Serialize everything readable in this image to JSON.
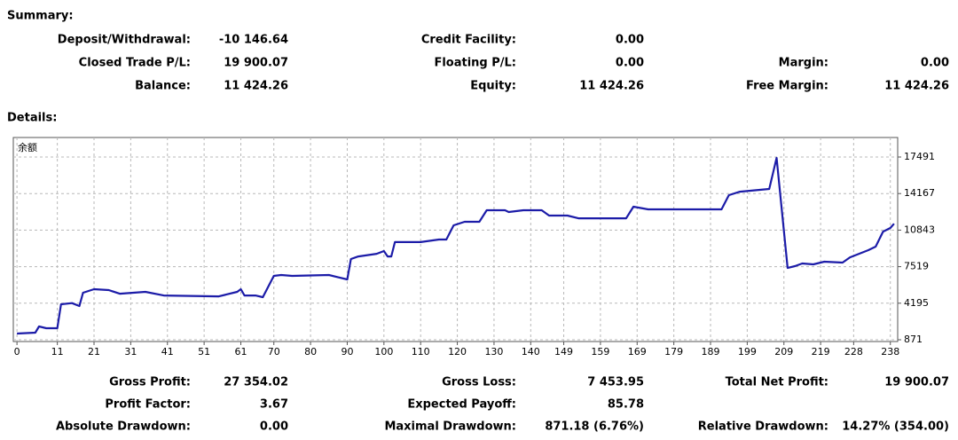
{
  "summary": {
    "title": "Summary:",
    "rows": [
      [
        {
          "label": "Deposit/Withdrawal:",
          "value": "-10 146.64"
        },
        {
          "label": "Credit Facility:",
          "value": "0.00"
        }
      ],
      [
        {
          "label": "Closed Trade P/L:",
          "value": "19 900.07"
        },
        {
          "label": "Floating P/L:",
          "value": "0.00"
        },
        {
          "label": "Margin:",
          "value": "0.00"
        }
      ],
      [
        {
          "label": "Balance:",
          "value": "11 424.26"
        },
        {
          "label": "Equity:",
          "value": "11 424.26"
        },
        {
          "label": "Free Margin:",
          "value": "11 424.26"
        }
      ]
    ]
  },
  "details": {
    "title": "Details:"
  },
  "chart_data": {
    "type": "line",
    "series_label": "余额",
    "x": [
      0,
      5,
      6,
      8,
      11,
      12,
      15,
      17,
      18,
      21,
      25,
      28,
      35,
      40,
      55,
      60,
      61,
      62,
      65,
      67,
      70,
      72,
      75,
      85,
      90,
      91,
      93,
      98,
      100,
      101,
      102,
      103,
      110,
      115,
      117,
      119,
      122,
      126,
      128,
      133,
      134,
      138,
      143,
      145,
      150,
      153,
      166,
      168,
      172,
      192,
      194,
      197,
      205,
      207,
      210,
      212,
      214,
      217,
      220,
      225,
      227,
      232,
      234,
      236,
      238,
      239
    ],
    "values": [
      1440,
      1520,
      2080,
      1920,
      1920,
      4100,
      4200,
      3940,
      5150,
      5470,
      5390,
      5060,
      5230,
      4900,
      4820,
      5230,
      5470,
      4900,
      4900,
      4740,
      6680,
      6760,
      6680,
      6760,
      6360,
      8210,
      8450,
      8690,
      8940,
      8450,
      8450,
      9750,
      9750,
      9990,
      9990,
      11280,
      11600,
      11600,
      12650,
      12650,
      12490,
      12650,
      12650,
      12170,
      12170,
      11920,
      11920,
      12970,
      12730,
      12730,
      14020,
      14340,
      14590,
      17410,
      7410,
      7570,
      7810,
      7730,
      7970,
      7890,
      8370,
      9020,
      9340,
      10710,
      11040,
      11424
    ],
    "color": "#1c1ca8",
    "xlim": [
      -1,
      240
    ],
    "ylim": [
      710,
      19266
    ],
    "xticks": [
      0,
      11,
      21,
      31,
      41,
      51,
      61,
      70,
      80,
      90,
      100,
      110,
      120,
      130,
      140,
      149,
      159,
      169,
      179,
      189,
      199,
      209,
      219,
      228,
      238
    ],
    "yticks": [
      871,
      4195,
      7519,
      10843,
      14167,
      17491
    ],
    "grid": true
  },
  "results": {
    "rows": [
      [
        {
          "label": "Gross Profit:",
          "value": "27 354.02"
        },
        {
          "label": "Gross Loss:",
          "value": "7 453.95"
        },
        {
          "label": "Total Net Profit:",
          "value": "19 900.07"
        }
      ],
      [
        {
          "label": "Profit Factor:",
          "value": "3.67"
        },
        {
          "label": "Expected Payoff:",
          "value": "85.78"
        }
      ],
      [
        {
          "label": "Absolute Drawdown:",
          "value": "0.00"
        },
        {
          "label": "Maximal Drawdown:",
          "value": "871.18 (6.76%)"
        },
        {
          "label": "Relative Drawdown:",
          "value": "14.27% (354.00)"
        }
      ]
    ]
  }
}
